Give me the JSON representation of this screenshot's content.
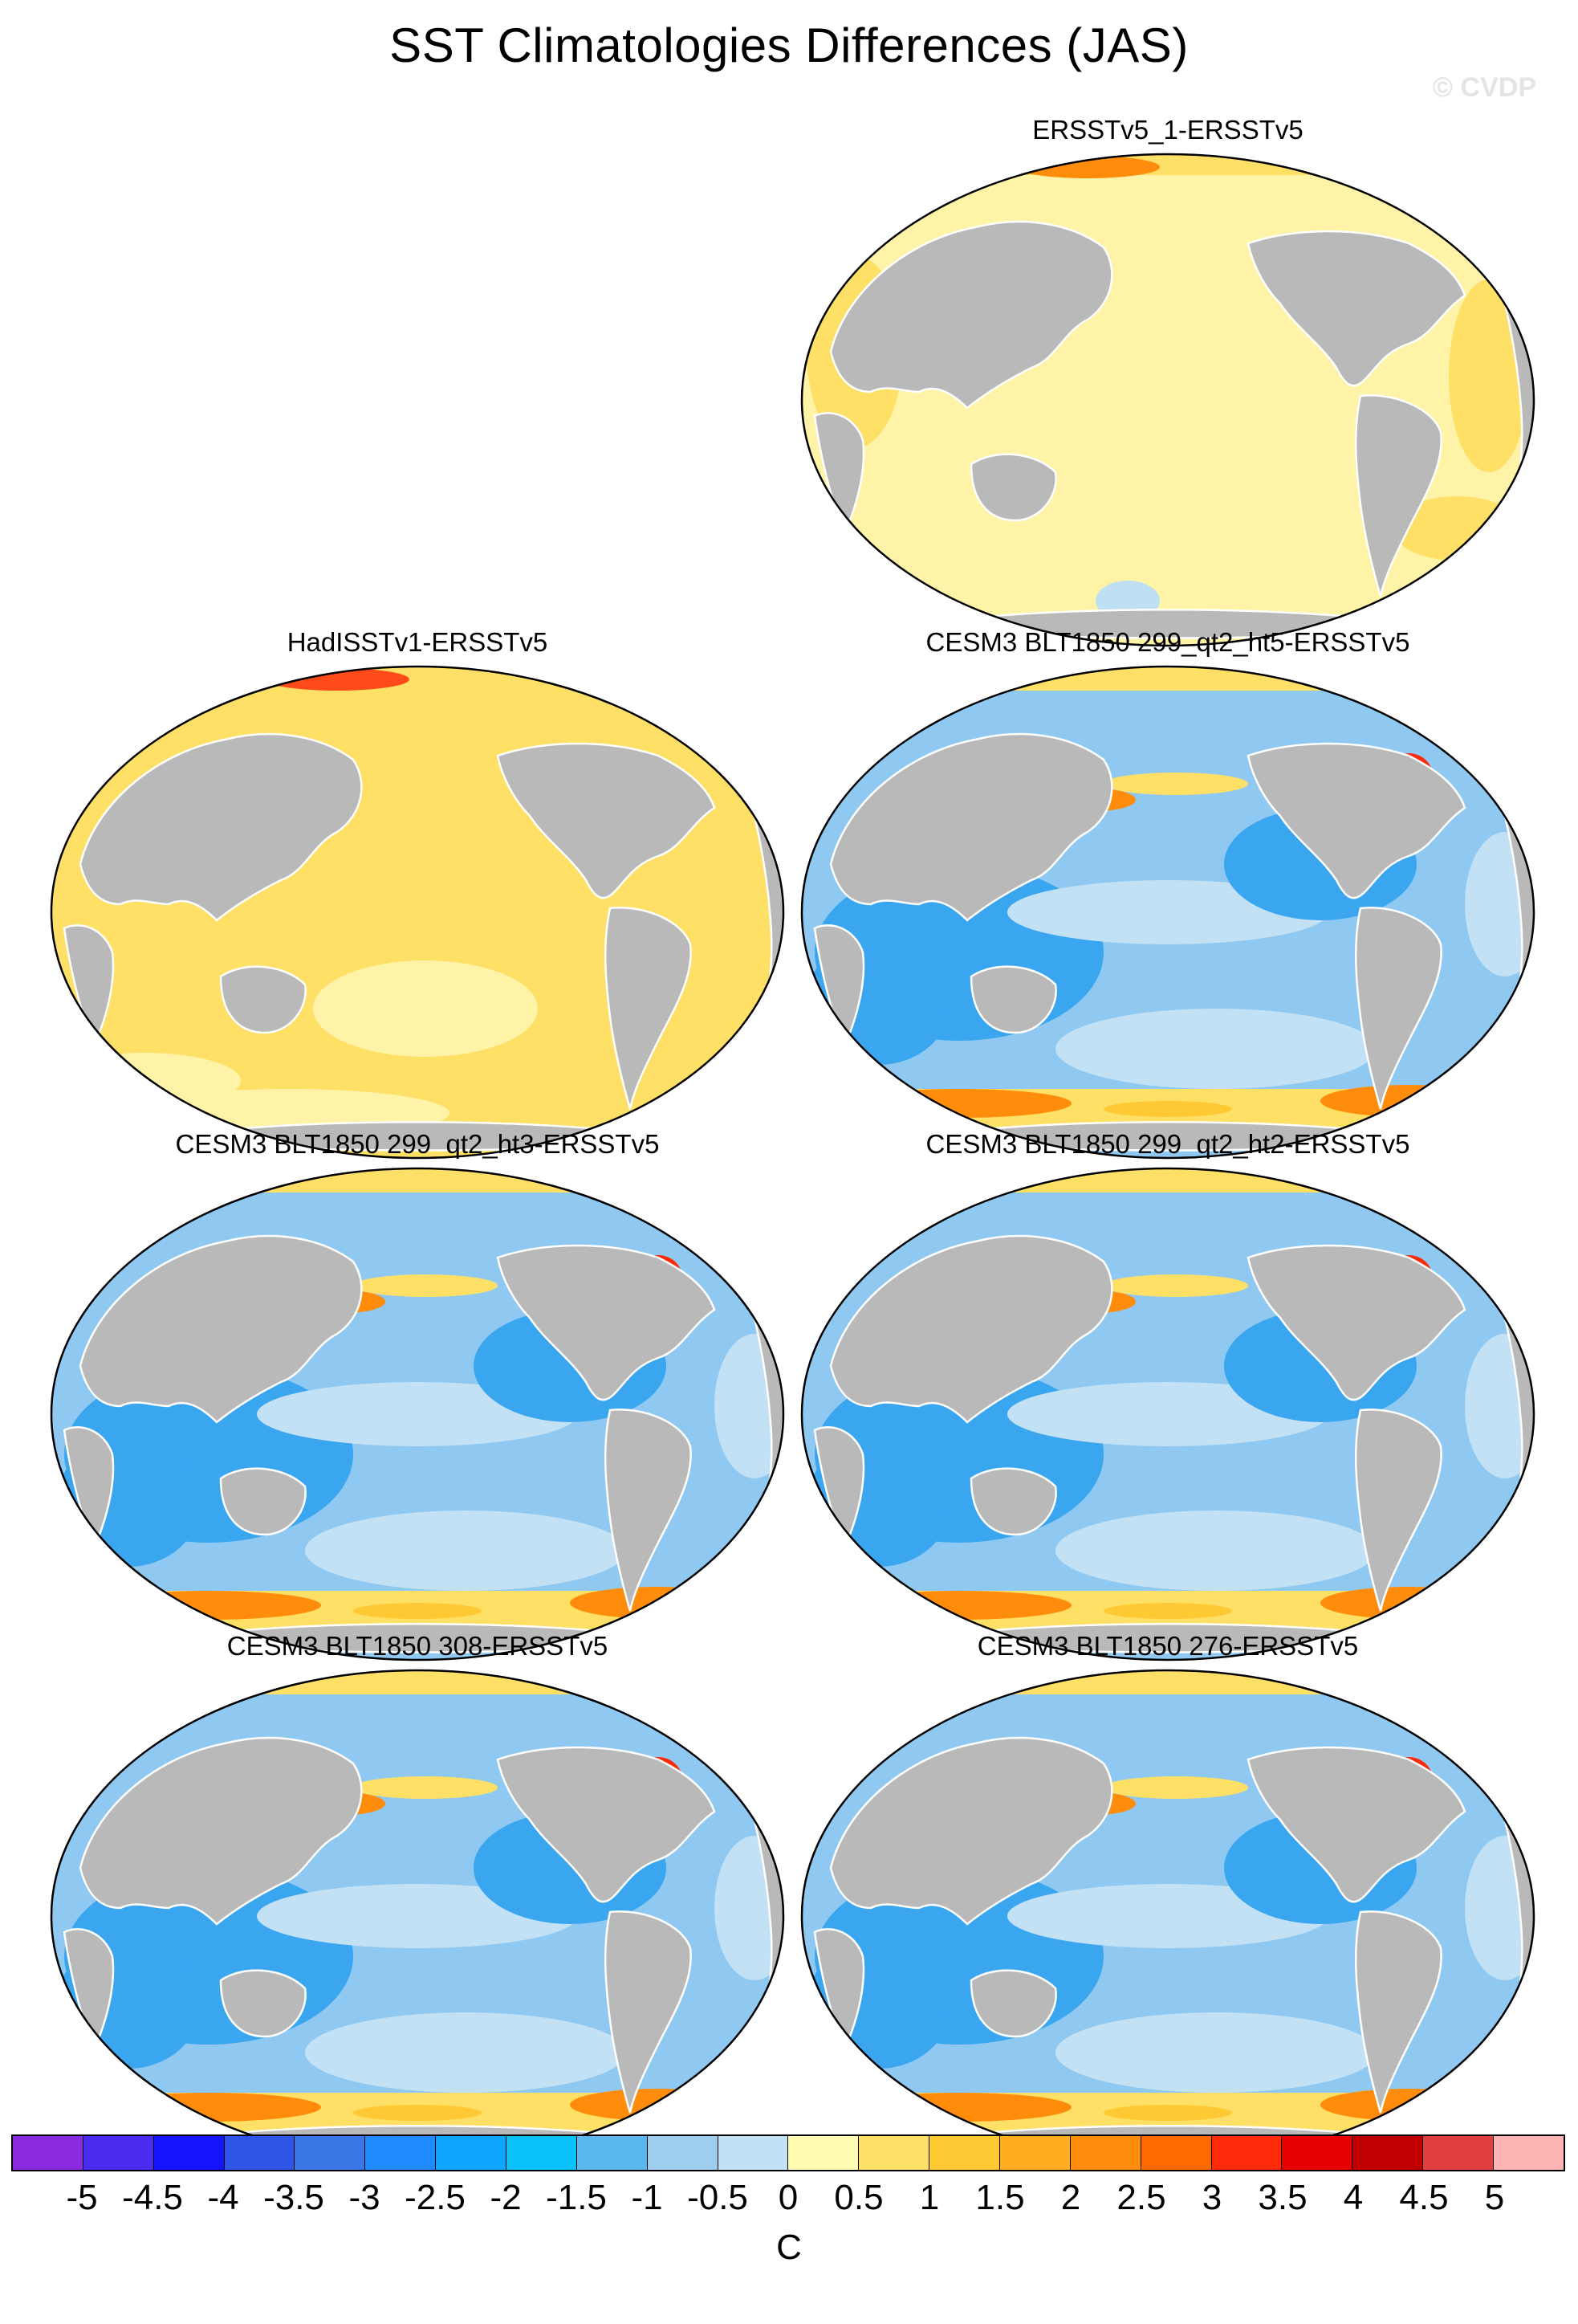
{
  "title": "SST Climatologies Differences (JAS)",
  "watermark": "© CVDP",
  "panels": [
    {
      "label": "ERSSTv5_1-ERSSTv5",
      "pattern": "warm-light",
      "slot": "r1c2"
    },
    {
      "label": "HadISSTv1-ERSSTv5",
      "pattern": "warm",
      "slot": "r2c1"
    },
    {
      "label": "CESM3 BLT1850 299_qt2_ht5-ERSSTv5",
      "pattern": "model",
      "slot": "r2c2"
    },
    {
      "label": "CESM3 BLT1850 299_qt2_ht3-ERSSTv5",
      "pattern": "model",
      "slot": "r3c1"
    },
    {
      "label": "CESM3 BLT1850 299_qt2_ht2-ERSSTv5",
      "pattern": "model",
      "slot": "r3c2"
    },
    {
      "label": "CESM3 BLT1850 308-ERSSTv5",
      "pattern": "model",
      "slot": "r4c1"
    },
    {
      "label": "CESM3 BLT1850 276-ERSSTv5",
      "pattern": "model",
      "slot": "r4c2"
    }
  ],
  "colorbar": {
    "colors": [
      "#8a2be2",
      "#4b2bf0",
      "#1414ff",
      "#2e55e6",
      "#3a78e8",
      "#1f8bff",
      "#0fa6ff",
      "#0ac0f8",
      "#5ab8ee",
      "#9fcdee",
      "#c3e1f5",
      "#fffbb0",
      "#ffe066",
      "#ffc933",
      "#ffad1f",
      "#ff8c0a",
      "#ff6a00",
      "#ff2a0a",
      "#e60000",
      "#c00000",
      "#e04040",
      "#ffb4b4"
    ],
    "tick_labels": [
      "-5",
      "-4.5",
      "-4",
      "-3.5",
      "-3",
      "-2.5",
      "-2",
      "-1.5",
      "-1",
      "-0.5",
      "0",
      "0.5",
      "1",
      "1.5",
      "2",
      "2.5",
      "3",
      "3.5",
      "4",
      "4.5",
      "5"
    ],
    "units": "C"
  },
  "colors": {
    "land": "#b9b9b9",
    "warm_light": "#fff3a8",
    "warm": "#ffe066",
    "cool": "#8fc8f0",
    "cool_strong": "#3aa6f0",
    "hot": "#ff8c0a"
  }
}
